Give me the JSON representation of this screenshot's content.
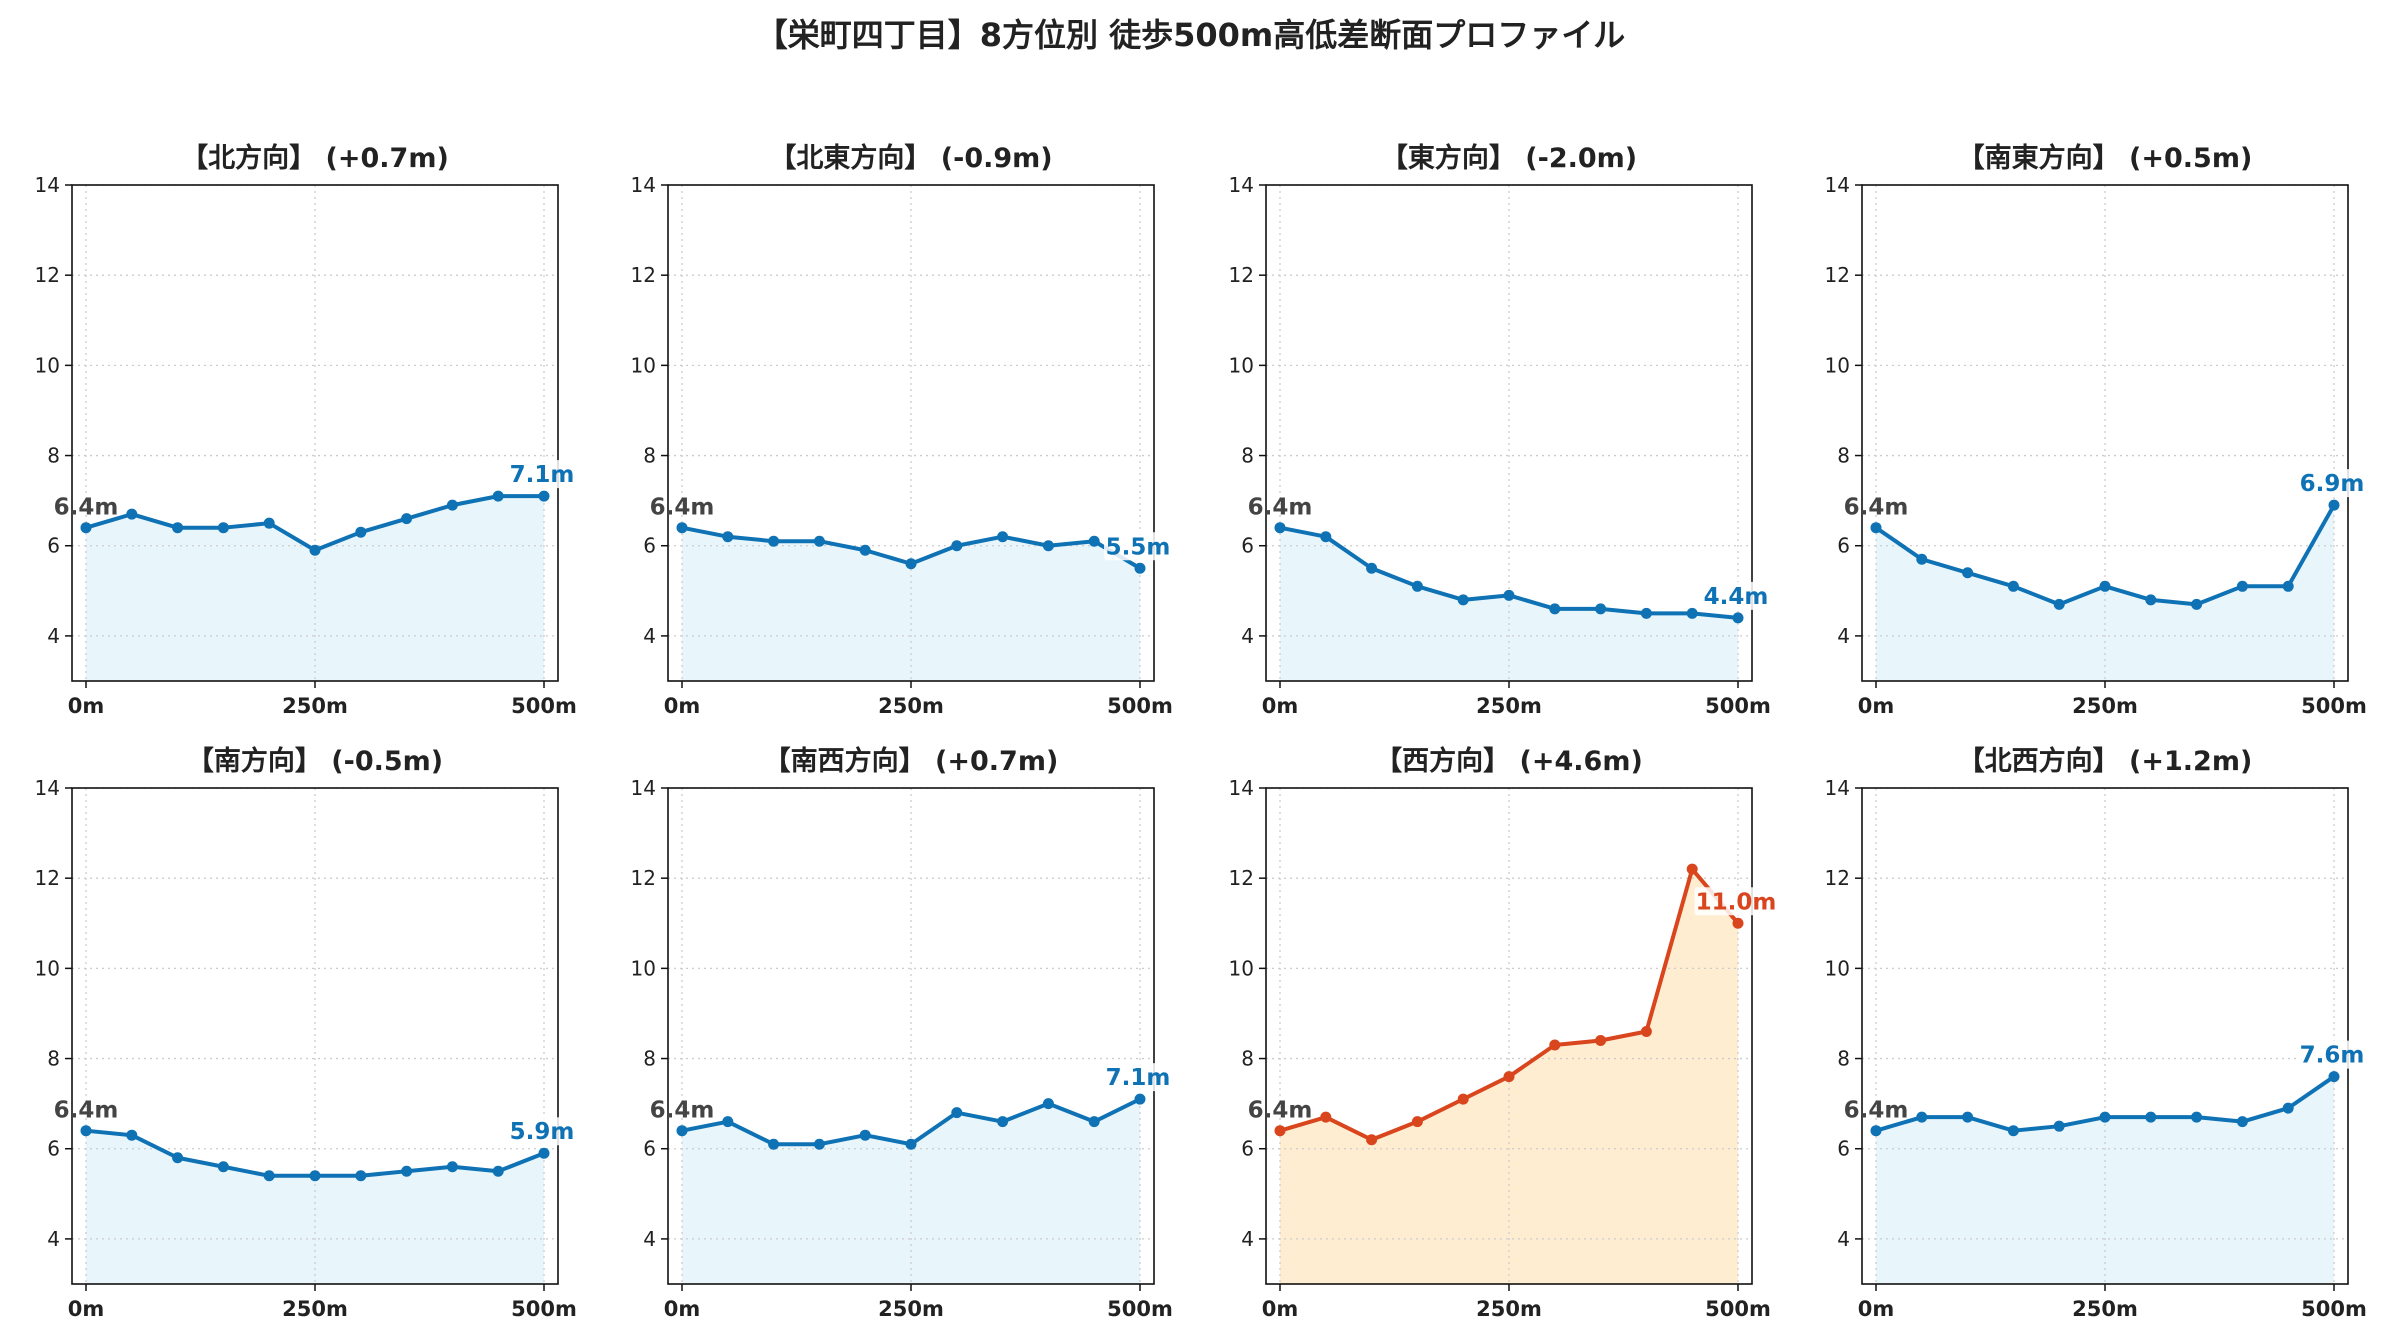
{
  "title": "【栄町四丁目】8方位別 徒歩500m高低差断面プロファイル",
  "colors": {
    "normal_line": "#0f72b5",
    "normal_fill": "#e8f6fc",
    "highlight_line": "#d9451c",
    "highlight_fill": "#ffedd2",
    "start_label": "#444444",
    "grid": "#cccccc"
  },
  "chart_data": [
    {
      "type": "line",
      "title": "【北方向】 (+0.7m)",
      "x": [
        0,
        50,
        100,
        150,
        200,
        250,
        300,
        350,
        400,
        450,
        500
      ],
      "values": [
        6.4,
        6.7,
        6.4,
        6.4,
        6.5,
        5.9,
        6.3,
        6.6,
        6.9,
        7.1,
        7.1
      ],
      "start_label": "6.4m",
      "end_label": "7.1m",
      "highlight": false,
      "xticks": [
        "0m",
        "250m",
        "500m"
      ],
      "yticks": [
        "4",
        "6",
        "8",
        "10",
        "12",
        "14"
      ],
      "ylim": [
        3,
        14
      ],
      "xlim": [
        0,
        500
      ],
      "grid": true
    },
    {
      "type": "line",
      "title": "【北東方向】 (-0.9m)",
      "x": [
        0,
        50,
        100,
        150,
        200,
        250,
        300,
        350,
        400,
        450,
        500
      ],
      "values": [
        6.4,
        6.2,
        6.1,
        6.1,
        5.9,
        5.6,
        6.0,
        6.2,
        6.0,
        6.1,
        5.5
      ],
      "start_label": "6.4m",
      "end_label": "5.5m",
      "highlight": false,
      "xticks": [
        "0m",
        "250m",
        "500m"
      ],
      "yticks": [
        "4",
        "6",
        "8",
        "10",
        "12",
        "14"
      ],
      "ylim": [
        3,
        14
      ],
      "xlim": [
        0,
        500
      ],
      "grid": true
    },
    {
      "type": "line",
      "title": "【東方向】 (-2.0m)",
      "x": [
        0,
        50,
        100,
        150,
        200,
        250,
        300,
        350,
        400,
        450,
        500
      ],
      "values": [
        6.4,
        6.2,
        5.5,
        5.1,
        4.8,
        4.9,
        4.6,
        4.6,
        4.5,
        4.5,
        4.4
      ],
      "start_label": "6.4m",
      "end_label": "4.4m",
      "highlight": false,
      "xticks": [
        "0m",
        "250m",
        "500m"
      ],
      "yticks": [
        "4",
        "6",
        "8",
        "10",
        "12",
        "14"
      ],
      "ylim": [
        3,
        14
      ],
      "xlim": [
        0,
        500
      ],
      "grid": true
    },
    {
      "type": "line",
      "title": "【南東方向】 (+0.5m)",
      "x": [
        0,
        50,
        100,
        150,
        200,
        250,
        300,
        350,
        400,
        450,
        500
      ],
      "values": [
        6.4,
        5.7,
        5.4,
        5.1,
        4.7,
        5.1,
        4.8,
        4.7,
        5.1,
        5.1,
        6.9
      ],
      "start_label": "6.4m",
      "end_label": "6.9m",
      "highlight": false,
      "xticks": [
        "0m",
        "250m",
        "500m"
      ],
      "yticks": [
        "4",
        "6",
        "8",
        "10",
        "12",
        "14"
      ],
      "ylim": [
        3,
        14
      ],
      "xlim": [
        0,
        500
      ],
      "grid": true
    },
    {
      "type": "line",
      "title": "【南方向】 (-0.5m)",
      "x": [
        0,
        50,
        100,
        150,
        200,
        250,
        300,
        350,
        400,
        450,
        500
      ],
      "values": [
        6.4,
        6.3,
        5.8,
        5.6,
        5.4,
        5.4,
        5.4,
        5.5,
        5.6,
        5.5,
        5.9
      ],
      "start_label": "6.4m",
      "end_label": "5.9m",
      "highlight": false,
      "xticks": [
        "0m",
        "250m",
        "500m"
      ],
      "yticks": [
        "4",
        "6",
        "8",
        "10",
        "12",
        "14"
      ],
      "ylim": [
        3,
        14
      ],
      "xlim": [
        0,
        500
      ],
      "grid": true
    },
    {
      "type": "line",
      "title": "【南西方向】 (+0.7m)",
      "x": [
        0,
        50,
        100,
        150,
        200,
        250,
        300,
        350,
        400,
        450,
        500
      ],
      "values": [
        6.4,
        6.6,
        6.1,
        6.1,
        6.3,
        6.1,
        6.8,
        6.6,
        7.0,
        6.6,
        7.1
      ],
      "start_label": "6.4m",
      "end_label": "7.1m",
      "highlight": false,
      "xticks": [
        "0m",
        "250m",
        "500m"
      ],
      "yticks": [
        "4",
        "6",
        "8",
        "10",
        "12",
        "14"
      ],
      "ylim": [
        3,
        14
      ],
      "xlim": [
        0,
        500
      ],
      "grid": true
    },
    {
      "type": "line",
      "title": "【西方向】 (+4.6m)",
      "x": [
        0,
        50,
        100,
        150,
        200,
        250,
        300,
        350,
        400,
        450,
        500
      ],
      "values": [
        6.4,
        6.7,
        6.2,
        6.6,
        7.1,
        7.6,
        8.3,
        8.4,
        8.6,
        12.2,
        11.0
      ],
      "start_label": "6.4m",
      "end_label": "11.0m",
      "highlight": true,
      "xticks": [
        "0m",
        "250m",
        "500m"
      ],
      "yticks": [
        "4",
        "6",
        "8",
        "10",
        "12",
        "14"
      ],
      "ylim": [
        3,
        14
      ],
      "xlim": [
        0,
        500
      ],
      "grid": true
    },
    {
      "type": "line",
      "title": "【北西方向】 (+1.2m)",
      "x": [
        0,
        50,
        100,
        150,
        200,
        250,
        300,
        350,
        400,
        450,
        500
      ],
      "values": [
        6.4,
        6.7,
        6.7,
        6.4,
        6.5,
        6.7,
        6.7,
        6.7,
        6.6,
        6.9,
        7.6
      ],
      "start_label": "6.4m",
      "end_label": "7.6m",
      "highlight": false,
      "xticks": [
        "0m",
        "250m",
        "500m"
      ],
      "yticks": [
        "4",
        "6",
        "8",
        "10",
        "12",
        "14"
      ],
      "ylim": [
        3,
        14
      ],
      "xlim": [
        0,
        500
      ],
      "grid": true
    }
  ]
}
